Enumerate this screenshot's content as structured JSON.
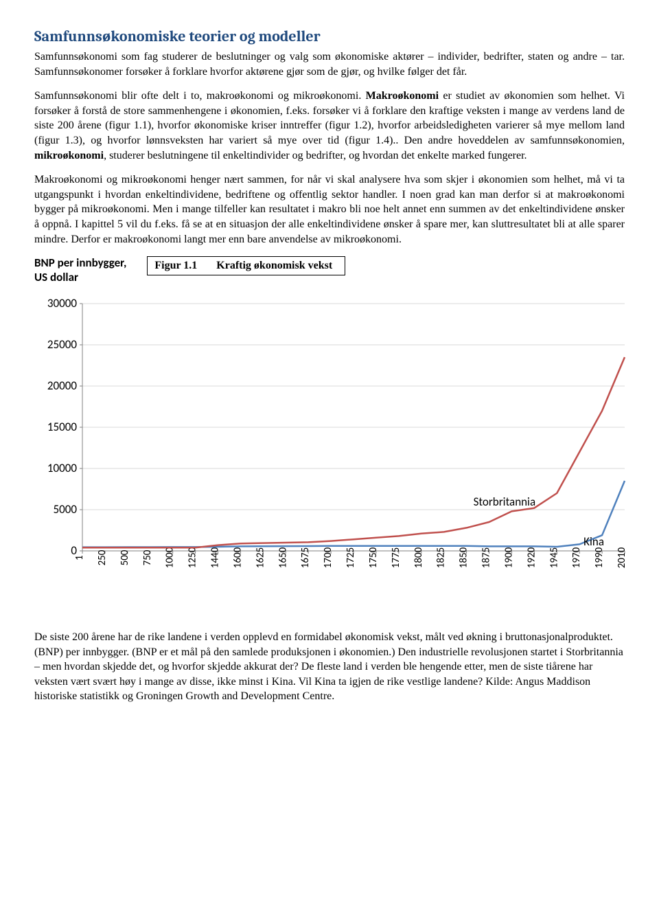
{
  "heading": "Samfunnsøkonomiske teorier og modeller",
  "para1a": "Samfunnsøkonomi som fag studerer de beslutninger og valg som økonomiske aktører – individer, bedrifter, staten og andre – tar. Samfunnsøkonomer forsøker å forklare hvorfor aktørene gjør som de gjør, og hvilke følger det får.",
  "para1b_pre": "Samfunnsøkonomi blir ofte delt i to, makroøkonomi og mikroøkonomi. ",
  "para1b_bold1": "Makroøkonomi",
  "para1b_mid": " er studiet av økonomien som helhet. Vi forsøker å forstå de store sammenhengene i økonomien, f.eks. forsøker vi å forklare den kraftige veksten i mange av verdens land de siste 200 årene (figur 1.1), hvorfor økonomiske kriser inntreffer (figur 1.2), hvorfor arbeidsledigheten varierer så mye mellom land (figur 1.3), og hvorfor lønnsveksten har variert så mye over tid (figur 1.4).. Den andre hoveddelen av samfunnsøkonomien, ",
  "para1b_bold2": "mikroøkonomi",
  "para1b_post": ", studerer beslutningene til enkeltindivider og bedrifter, og hvordan det enkelte marked fungerer.",
  "para2": "Makroøkonomi og mikroøkonomi henger nært sammen, for når vi skal analysere hva som skjer i økonomien som helhet, må vi ta utgangspunkt i hvordan enkeltindividene, bedriftene og offentlig sektor handler. I noen grad kan man derfor si at makroøkonomi bygger på mikroøkonomi. Men i mange tilfeller kan resultatet i makro bli noe helt annet enn summen av det enkeltindividene ønsker å oppnå. I kapittel 5 vil du f.eks. få se at en situasjon der alle enkeltindividene ønsker å spare mer, kan sluttresultatet bli at alle sparer mindre. Derfor er makroøkonomi langt mer enn bare anvendelse av mikroøkonomi.",
  "chart": {
    "ylabel": "BNP per innbygger,\nUS dollar",
    "title_prefix": "Figur 1.1",
    "title_text": "Kraftig økonomisk vekst",
    "yticks": [
      0,
      5000,
      10000,
      15000,
      20000,
      25000,
      30000
    ],
    "ymax": 30000,
    "xticks": [
      "1",
      "250",
      "500",
      "750",
      "1000",
      "1250",
      "1440",
      "1600",
      "1625",
      "1650",
      "1675",
      "1700",
      "1725",
      "1750",
      "1775",
      "1800",
      "1825",
      "1850",
      "1875",
      "1900",
      "1920",
      "1945",
      "1970",
      "1990",
      "2010"
    ],
    "colors": {
      "uk": "#c0504d",
      "china": "#4f81bd",
      "grid": "#d9d9d9",
      "axis": "#808080"
    },
    "line_width": 2.5,
    "series": {
      "uk": {
        "label": "Storbritannia",
        "values": [
          400,
          400,
          400,
          400,
          400,
          400,
          700,
          900,
          950,
          1000,
          1050,
          1200,
          1400,
          1600,
          1800,
          2100,
          2300,
          2800,
          3500,
          4800,
          5200,
          7000,
          12000,
          17000,
          23500
        ]
      },
      "china": {
        "label": "Kina",
        "values": [
          450,
          450,
          460,
          460,
          470,
          470,
          500,
          550,
          560,
          570,
          580,
          600,
          600,
          600,
          600,
          600,
          600,
          600,
          550,
          550,
          550,
          500,
          800,
          1900,
          8500
        ]
      }
    }
  },
  "para3": "De siste 200 årene har de rike landene i verden opplevd en formidabel økonomisk vekst, målt ved økning i bruttonasjonalproduktet.(BNP) per innbygger. (BNP er et mål på den samlede produksjonen i økonomien.) Den industrielle revolusjonen startet i Storbritannia – men hvordan skjedde det, og hvorfor skjedde akkurat der? De fleste land i verden ble hengende etter, men de siste tiårene har veksten vært svært høy i mange av disse, ikke minst i Kina. Vil Kina ta igjen de rike vestlige landene?           Kilde: Angus Maddison historiske statistikk og Groningen Growth and Development Centre."
}
